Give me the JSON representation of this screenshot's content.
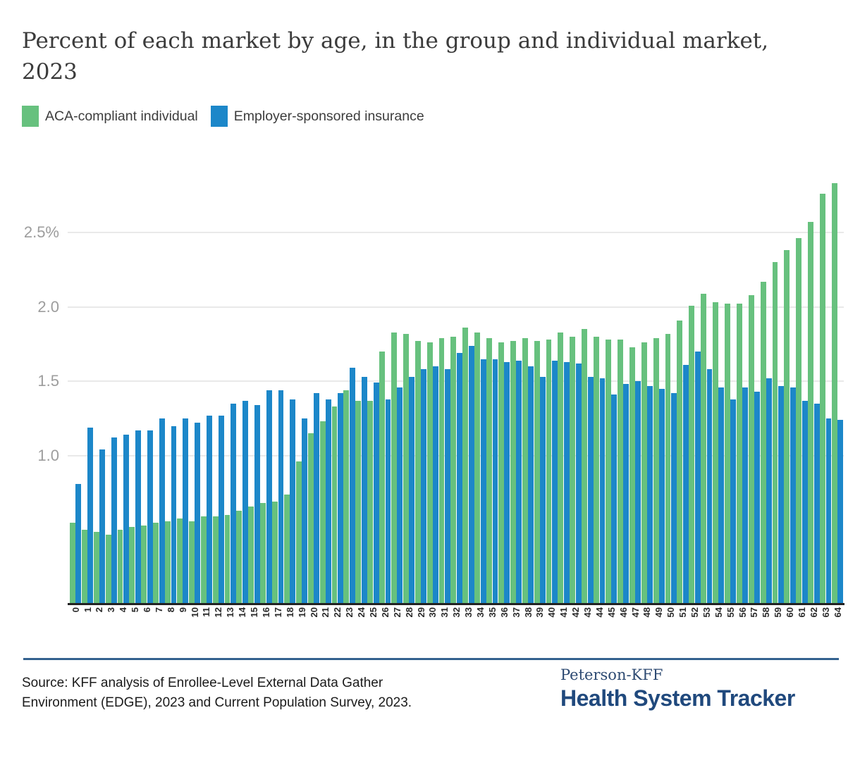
{
  "header": {
    "title_line1": "Percent of each market by age, in the group and individual market,",
    "title_line2": "2023"
  },
  "legend": {
    "items": [
      {
        "label": "ACA-compliant individual",
        "color": "#67c17e"
      },
      {
        "label": "Employer-sponsored insurance",
        "color": "#1c87c9"
      }
    ]
  },
  "chart_data": {
    "type": "bar",
    "title": "Percent of each market by age, in the group and individual market, 2023",
    "xlabel": "Age",
    "ylabel": "Percent of market",
    "ylim": [
      0,
      2.9
    ],
    "grid": true,
    "legend_position": "top",
    "yticks": [
      {
        "v": 1.0,
        "label": "1.0"
      },
      {
        "v": 1.5,
        "label": "1.5"
      },
      {
        "v": 2.0,
        "label": "2.0"
      },
      {
        "v": 2.5,
        "label": "2.5%"
      }
    ],
    "categories": [
      "0",
      "1",
      "2",
      "3",
      "4",
      "5",
      "6",
      "7",
      "8",
      "9",
      "10",
      "11",
      "12",
      "13",
      "14",
      "15",
      "16",
      "17",
      "18",
      "19",
      "20",
      "21",
      "22",
      "23",
      "24",
      "25",
      "26",
      "27",
      "28",
      "29",
      "30",
      "31",
      "32",
      "33",
      "34",
      "35",
      "36",
      "37",
      "38",
      "39",
      "40",
      "41",
      "42",
      "43",
      "44",
      "45",
      "46",
      "47",
      "48",
      "49",
      "50",
      "51",
      "52",
      "53",
      "54",
      "55",
      "56",
      "57",
      "58",
      "59",
      "60",
      "61",
      "62",
      "63",
      "64"
    ],
    "series": [
      {
        "name": "ACA-compliant individual",
        "color": "#67c17e",
        "values": [
          0.55,
          0.5,
          0.49,
          0.47,
          0.5,
          0.52,
          0.53,
          0.55,
          0.56,
          0.58,
          0.56,
          0.59,
          0.59,
          0.6,
          0.63,
          0.66,
          0.68,
          0.69,
          0.74,
          0.96,
          1.15,
          1.23,
          1.33,
          1.44,
          1.37,
          1.37,
          1.7,
          1.83,
          1.82,
          1.77,
          1.76,
          1.79,
          1.8,
          1.86,
          1.83,
          1.79,
          1.76,
          1.77,
          1.79,
          1.77,
          1.78,
          1.83,
          1.8,
          1.85,
          1.8,
          1.78,
          1.78,
          1.73,
          1.76,
          1.79,
          1.82,
          1.91,
          2.01,
          2.09,
          2.03,
          2.02,
          2.02,
          2.08,
          2.17,
          2.3,
          2.38,
          2.46,
          2.57,
          2.76,
          2.83
        ]
      },
      {
        "name": "Employer-sponsored insurance",
        "color": "#1c87c9",
        "values": [
          0.81,
          1.19,
          1.04,
          1.12,
          1.14,
          1.17,
          1.17,
          1.25,
          1.2,
          1.25,
          1.22,
          1.27,
          1.27,
          1.35,
          1.37,
          1.34,
          1.44,
          1.44,
          1.38,
          1.25,
          1.42,
          1.38,
          1.42,
          1.59,
          1.53,
          1.49,
          1.38,
          1.46,
          1.53,
          1.58,
          1.6,
          1.58,
          1.69,
          1.74,
          1.65,
          1.65,
          1.63,
          1.64,
          1.6,
          1.53,
          1.64,
          1.63,
          1.62,
          1.53,
          1.52,
          1.41,
          1.48,
          1.5,
          1.47,
          1.45,
          1.42,
          1.61,
          1.7,
          1.58,
          1.46,
          1.38,
          1.46,
          1.43,
          1.52,
          1.47,
          1.46,
          1.37,
          1.35,
          1.25,
          1.24
        ]
      }
    ]
  },
  "footer": {
    "rule_color": "#33618f",
    "source_line1": "Source: KFF analysis of Enrollee-Level External Data Gather",
    "source_line2": "Environment (EDGE), 2023 and Current Population Survey, 2023.",
    "brand_top": "Peterson-KFF",
    "brand_bottom": "Health System Tracker"
  }
}
